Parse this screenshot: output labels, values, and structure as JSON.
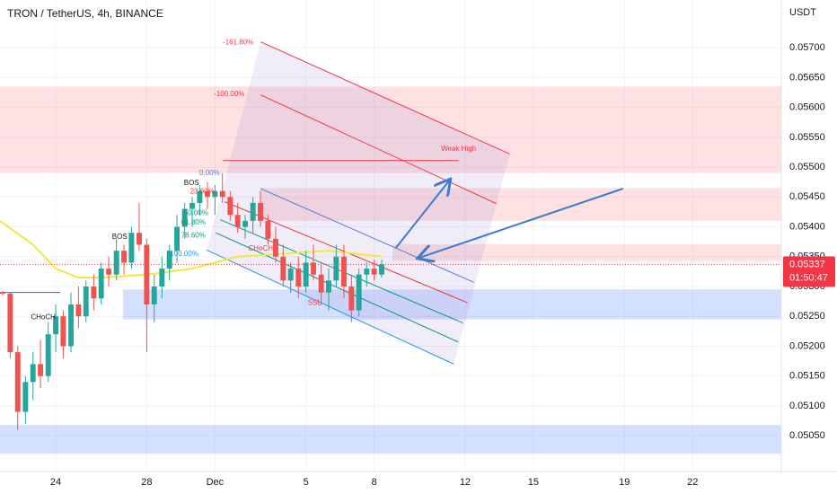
{
  "chart_data": {
    "type": "candlestick",
    "title": "TRON / TetherUS, 4h, BINANCE",
    "y_axis_label": "USDT",
    "up_color": "#26a69a",
    "down_color": "#ef5350",
    "xlim": [
      -2.45,
      31.9
    ],
    "ylim": [
      0.0499,
      0.0578
    ],
    "xticks": [
      {
        "value": 0,
        "label": "24"
      },
      {
        "value": 4,
        "label": "28"
      },
      {
        "value": 7,
        "label": "Dec"
      },
      {
        "value": 11,
        "label": "5"
      },
      {
        "value": 14,
        "label": "8"
      },
      {
        "value": 18,
        "label": "12"
      },
      {
        "value": 21,
        "label": "15"
      },
      {
        "value": 25,
        "label": "19"
      },
      {
        "value": 28,
        "label": "22"
      }
    ],
    "yticks": [
      {
        "value": 0.0505,
        "label": "0.05050"
      },
      {
        "value": 0.051,
        "label": "0.05100"
      },
      {
        "value": 0.0515,
        "label": "0.05150"
      },
      {
        "value": 0.052,
        "label": "0.05200"
      },
      {
        "value": 0.0525,
        "label": "0.05250"
      },
      {
        "value": 0.053,
        "label": "0.05300"
      },
      {
        "value": 0.0535,
        "label": "0.05350"
      },
      {
        "value": 0.054,
        "label": "0.05400"
      },
      {
        "value": 0.0545,
        "label": "0.05450"
      },
      {
        "value": 0.055,
        "label": "0.05500"
      },
      {
        "value": 0.0555,
        "label": "0.05550"
      },
      {
        "value": 0.056,
        "label": "0.05600"
      },
      {
        "value": 0.0565,
        "label": "0.05650"
      },
      {
        "value": 0.057,
        "label": "0.05700"
      }
    ],
    "x": [
      -2.33,
      -2,
      -1.67,
      -1.33,
      -1,
      -0.67,
      -0.33,
      0,
      0.33,
      0.67,
      1,
      1.33,
      1.67,
      2,
      2.33,
      2.67,
      3,
      3.33,
      3.67,
      4,
      4.33,
      4.67,
      5,
      5.33,
      5.67,
      6,
      6.33,
      6.67,
      7,
      7.33,
      7.67,
      8,
      8.33,
      8.67,
      9,
      9.33,
      9.67,
      10,
      10.33,
      10.67,
      11,
      11.33,
      11.67,
      12,
      12.33,
      12.67,
      13,
      13.33,
      13.67,
      14,
      14.33
    ],
    "open": [
      0.0529,
      0.05288,
      0.0519,
      0.0509,
      0.0514,
      0.0517,
      0.0515,
      0.0522,
      0.0525,
      0.052,
      0.0527,
      0.0525,
      0.053,
      0.0528,
      0.0533,
      0.0532,
      0.0536,
      0.0534,
      0.0539,
      0.0537,
      0.0527,
      0.053,
      0.0533,
      0.0536,
      0.054,
      0.0543,
      0.0544,
      0.0546,
      0.0545,
      0.0546,
      0.0545,
      0.0542,
      0.054,
      0.0541,
      0.0544,
      0.0541,
      0.0538,
      0.0535,
      0.0531,
      0.0533,
      0.053,
      0.0534,
      0.0532,
      0.0529,
      0.0531,
      0.0535,
      0.053,
      0.0526,
      0.0532,
      0.0533,
      0.0532
    ],
    "high": [
      0.05292,
      0.0529,
      0.052,
      0.0515,
      0.0519,
      0.0521,
      0.0524,
      0.0527,
      0.0526,
      0.0529,
      0.053,
      0.0531,
      0.0532,
      0.0534,
      0.0535,
      0.0538,
      0.0537,
      0.054,
      0.0544,
      0.0538,
      0.0532,
      0.0535,
      0.0537,
      0.0542,
      0.0544,
      0.0545,
      0.0547,
      0.05475,
      0.0547,
      0.0549,
      0.0546,
      0.0544,
      0.0542,
      0.0545,
      0.0546,
      0.0542,
      0.054,
      0.0537,
      0.0534,
      0.0535,
      0.0536,
      0.0537,
      0.0534,
      0.0533,
      0.0537,
      0.0537,
      0.0532,
      0.0533,
      0.0534,
      0.05345,
      0.05345
    ],
    "low": [
      0.05285,
      0.0518,
      0.0506,
      0.0507,
      0.0511,
      0.0513,
      0.0514,
      0.0519,
      0.0518,
      0.0519,
      0.0523,
      0.0524,
      0.0526,
      0.0527,
      0.053,
      0.0531,
      0.0532,
      0.0533,
      0.0536,
      0.0519,
      0.0524,
      0.0528,
      0.0531,
      0.0534,
      0.0538,
      0.054,
      0.0542,
      0.0543,
      0.0542,
      0.0544,
      0.0541,
      0.0539,
      0.0538,
      0.0539,
      0.054,
      0.0537,
      0.0534,
      0.053,
      0.0529,
      0.0528,
      0.0529,
      0.0531,
      0.0527,
      0.0526,
      0.053,
      0.0528,
      0.0524,
      0.0525,
      0.053,
      0.0531,
      0.05315
    ],
    "close": [
      0.05288,
      0.0519,
      0.0509,
      0.0514,
      0.0517,
      0.0515,
      0.0522,
      0.0525,
      0.052,
      0.0527,
      0.0525,
      0.053,
      0.0528,
      0.0533,
      0.0532,
      0.0536,
      0.0534,
      0.0539,
      0.0537,
      0.0527,
      0.053,
      0.0533,
      0.0536,
      0.054,
      0.0543,
      0.0544,
      0.0546,
      0.0545,
      0.0546,
      0.0545,
      0.0542,
      0.054,
      0.0541,
      0.0544,
      0.0541,
      0.0538,
      0.0535,
      0.0531,
      0.0533,
      0.053,
      0.0534,
      0.0532,
      0.0529,
      0.0531,
      0.0535,
      0.053,
      0.0526,
      0.0532,
      0.0533,
      0.0532,
      0.05337
    ],
    "last_price": 0.05337,
    "countdown": "01:50:47",
    "moving_average": {
      "color": "#f5e642",
      "x": [
        -2.45,
        -1,
        0,
        1,
        2,
        4,
        6,
        8,
        10,
        12,
        14.33
      ],
      "values": [
        0.0541,
        0.0537,
        0.0533,
        0.05315,
        0.05315,
        0.0532,
        0.0533,
        0.0535,
        0.05355,
        0.0536,
        0.0535
      ]
    },
    "zones": [
      {
        "color": "rgba(242,54,69,0.15)",
        "x": [
          -2.45,
          31.9
        ],
        "y": [
          0.05635,
          0.0549
        ]
      },
      {
        "color": "rgba(242,54,69,0.15)",
        "x": [
          9.0,
          31.9
        ],
        "y": [
          0.05465,
          0.0541
        ]
      },
      {
        "color": "rgba(242,54,69,0.15)",
        "x": [
          14.8,
          31.9
        ],
        "y": [
          0.05371,
          0.05343
        ]
      },
      {
        "color": "rgba(41,98,255,0.2)",
        "x": [
          2.95,
          31.9
        ],
        "y": [
          0.05295,
          0.05245
        ]
      },
      {
        "color": "rgba(41,98,255,0.2)",
        "x": [
          -2.45,
          31.9
        ],
        "y": [
          0.05068,
          0.0502
        ]
      }
    ],
    "shade": {
      "color": "rgba(149,117,205,0.14)",
      "x": [
        6.64,
        9.01,
        19.96,
        17.5
      ],
      "y": [
        0.05361,
        0.0571,
        0.05522,
        0.0517
      ]
    },
    "lines": [
      {
        "color": "#f23645",
        "x": [
          9.01,
          19.96
        ],
        "y": [
          0.0571,
          0.05522
        ]
      },
      {
        "color": "#f23645",
        "x": [
          9.01,
          19.37
        ],
        "y": [
          0.05621,
          0.05439
        ]
      },
      {
        "color": "#f23645",
        "x": [
          7.35,
          17.71
        ],
        "y": [
          0.05511,
          0.05511
        ]
      },
      {
        "color": "#5b7fd6",
        "x": [
          9.01,
          18.38
        ],
        "y": [
          0.05464,
          0.05307
        ]
      },
      {
        "color": "#e53935",
        "x": [
          7.43,
          18.1
        ],
        "y": [
          0.05442,
          0.05273
        ]
      },
      {
        "color": "#089981",
        "x": [
          7.23,
          17.9
        ],
        "y": [
          0.05412,
          0.05239
        ]
      },
      {
        "color": "#089981",
        "x": [
          7.04,
          17.7
        ],
        "y": [
          0.0539,
          0.05207
        ]
      },
      {
        "color": "#2196f3",
        "x": [
          6.64,
          17.5
        ],
        "y": [
          0.05361,
          0.0517
        ]
      },
      {
        "color": "#2962ff",
        "x": [
          -2.45,
          0.2
        ],
        "y": [
          0.0529,
          0.0529
        ]
      }
    ],
    "arrows": [
      {
        "color": "#3d7bd0",
        "x": [
          14.94,
          17.31
        ],
        "y": [
          0.05364,
          0.05478
        ]
      },
      {
        "color": "#3d7bd0",
        "x": [
          24.94,
          15.97
        ],
        "y": [
          0.05464,
          0.05348
        ]
      }
    ],
    "annotations": [
      {
        "text": "-161.80%",
        "x": 8.02,
        "y": 0.05709,
        "color": "#f23645"
      },
      {
        "text": "-100.00%",
        "x": 7.63,
        "y": 0.05622,
        "color": "#f23645"
      },
      {
        "text": "0.00%",
        "x": 6.76,
        "y": 0.0549,
        "color": "#5b7fd6"
      },
      {
        "text": "23.60%",
        "x": 6.44,
        "y": 0.05459,
        "color": "#e53935"
      },
      {
        "text": "50.00%",
        "x": 6.17,
        "y": 0.05423,
        "color": "#089981"
      },
      {
        "text": "61.80%",
        "x": 6.05,
        "y": 0.05407,
        "color": "#089981"
      },
      {
        "text": "78.60%",
        "x": 6.05,
        "y": 0.05385,
        "color": "#089981"
      },
      {
        "text": "100.00%",
        "x": 5.65,
        "y": 0.05354,
        "color": "#2196f3"
      },
      {
        "text": "BOS",
        "x": 5.97,
        "y": 0.05473,
        "color": "#131722"
      },
      {
        "text": "BOS",
        "x": 2.81,
        "y": 0.05383,
        "color": "#131722"
      },
      {
        "text": "CHoCH",
        "x": -0.55,
        "y": 0.05248,
        "color": "#131722"
      },
      {
        "text": "CHoCH",
        "x": 9.01,
        "y": 0.05363,
        "color": "#f23645"
      },
      {
        "text": "SSL",
        "x": 11.38,
        "y": 0.05272,
        "color": "#f23645"
      },
      {
        "text": "Weak High",
        "x": 17.71,
        "y": 0.0553,
        "color": "#f23645"
      }
    ]
  }
}
